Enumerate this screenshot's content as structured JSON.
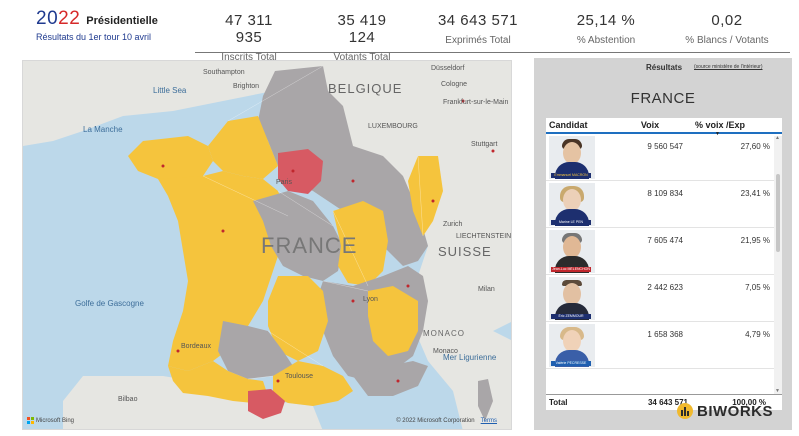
{
  "brand": {
    "year_part1": "20",
    "year_part2": "22",
    "title": "Présidentielle",
    "subtitle": "Résultats du 1er tour 10 avril"
  },
  "kpis": [
    {
      "value": "47 311 935",
      "label": "Inscrits Total"
    },
    {
      "value": "35 419 124",
      "label": "Votants Total"
    },
    {
      "value": "34 643 571",
      "label": "Exprimés Total"
    },
    {
      "value": "25,14 %",
      "label": "% Abstention"
    },
    {
      "value": "0,02",
      "label": "% Blancs / Votants"
    }
  ],
  "map": {
    "labels": {
      "france": "FRANCE",
      "belgique": "BELGIQUE",
      "luxembourg": "LUXEMBOURG",
      "suisse": "SUISSE",
      "liechtenstein": "LIECHTENSTEIN",
      "monaco": "MONACO",
      "la_manche": "La Manche",
      "little_sea": "Little Sea",
      "golfe": "Golfe de Gascogne",
      "mer_ligurienne": "Mer Ligurienne",
      "southampton": "Southampton",
      "brighton": "Brighton",
      "dusseldorf": "Düsseldorf",
      "cologne": "Cologne",
      "frankfurt": "Frankfurt-sur-le-Main",
      "stuttgart": "Stuttgart",
      "zurich": "Zurich",
      "milan": "Milan",
      "monaco_city": "Monaco",
      "bilbao": "Bilbao",
      "paris": "Paris",
      "bordeaux": "Bordeaux",
      "toulouse": "Toulouse",
      "lyon": "Lyon"
    },
    "attribution": "© 2022 Microsoft Corporation",
    "terms": "Terms",
    "provider": "Microsoft Bing",
    "colors": {
      "yellow": "#f5c43d",
      "gray": "#a9a6a8",
      "red": "#d75a63",
      "sea": "#bcd8ea",
      "land": "#e6e6e2"
    }
  },
  "results": {
    "title": "Résultats",
    "source_link": "(source ministère de l'intérieur)",
    "region": "FRANCE",
    "columns": [
      "Candidat",
      "Voix",
      "% voix /Exp"
    ],
    "rows": [
      {
        "candidate_tag": "Emmanuel MACRON",
        "voix": "9 560 547",
        "pct": "27,60 %",
        "tag_color": "#1d2f6f",
        "tag_text_color": "#f5c43d"
      },
      {
        "candidate_tag": "Marine LE PEN",
        "voix": "8 109 834",
        "pct": "23,41 %",
        "tag_color": "#1d2f6f",
        "tag_text_color": "#ffffff"
      },
      {
        "candidate_tag": "Jean-Luc MÉLENCHON",
        "voix": "7 605 474",
        "pct": "21,95 %",
        "tag_color": "#c0272d",
        "tag_text_color": "#ffffff"
      },
      {
        "candidate_tag": "Éric ZEMMOUR",
        "voix": "2 442 623",
        "pct": "7,05 %",
        "tag_color": "#1d2f6f",
        "tag_text_color": "#ffffff"
      },
      {
        "candidate_tag": "Valérie PÉCRESSE",
        "voix": "1 658 368",
        "pct": "4,79 %",
        "tag_color": "#1f5fb0",
        "tag_text_color": "#ffffff"
      }
    ],
    "total_label": "Total",
    "total_voix": "34 643 571",
    "total_pct": "100,00 %"
  },
  "logo": {
    "text": "BIWORKS"
  }
}
